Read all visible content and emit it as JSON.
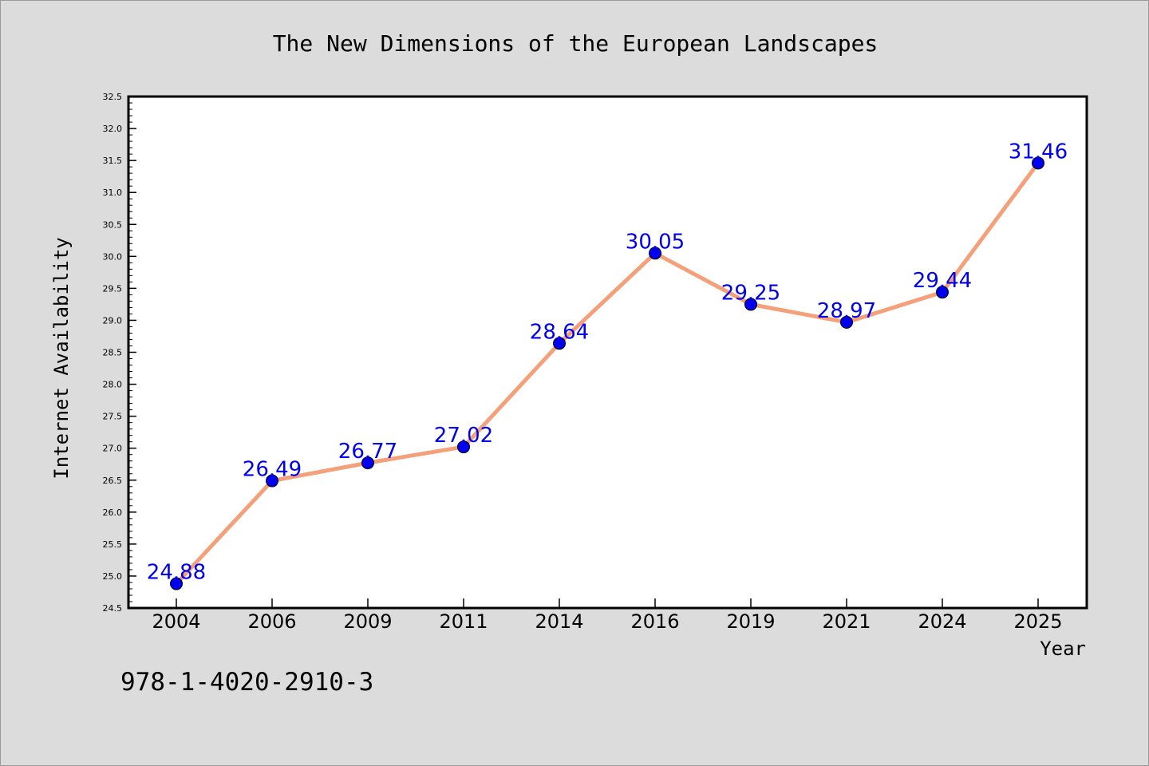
{
  "chart_data": {
    "type": "line",
    "title": "The New Dimensions of the European Landscapes",
    "xlabel": "Year",
    "ylabel": "Internet Availability",
    "categories": [
      "2004",
      "2006",
      "2009",
      "2011",
      "2014",
      "2016",
      "2019",
      "2021",
      "2024",
      "2025"
    ],
    "series": [
      {
        "values": [
          24.88,
          26.49,
          26.77,
          27.02,
          28.64,
          30.05,
          29.25,
          28.97,
          29.44,
          31.46
        ],
        "line_color": "#f4a07a",
        "marker_color": "#0000ee",
        "label_color": "#0000ee"
      }
    ],
    "data_labels": [
      "24.88",
      "26.49",
      "26.77",
      "27.02",
      "28.64",
      "30.05",
      "29.25",
      "28.97",
      "29.44",
      "31.46"
    ],
    "ylim": [
      24.5,
      32.5
    ],
    "y_ticks": [
      "24.5",
      "25.0",
      "25.5",
      "26.0",
      "26.5",
      "27.0",
      "27.5",
      "28.0",
      "28.5",
      "29.0",
      "29.5",
      "30.0",
      "30.5",
      "31.0",
      "31.5",
      "32.0",
      "32.5"
    ],
    "grid": false,
    "legend": "none",
    "annotation": "978-1-4020-2910-3"
  },
  "colors": {
    "background": "#dcdcdc",
    "plot_area": "#ffffff",
    "axis": "#000000"
  }
}
